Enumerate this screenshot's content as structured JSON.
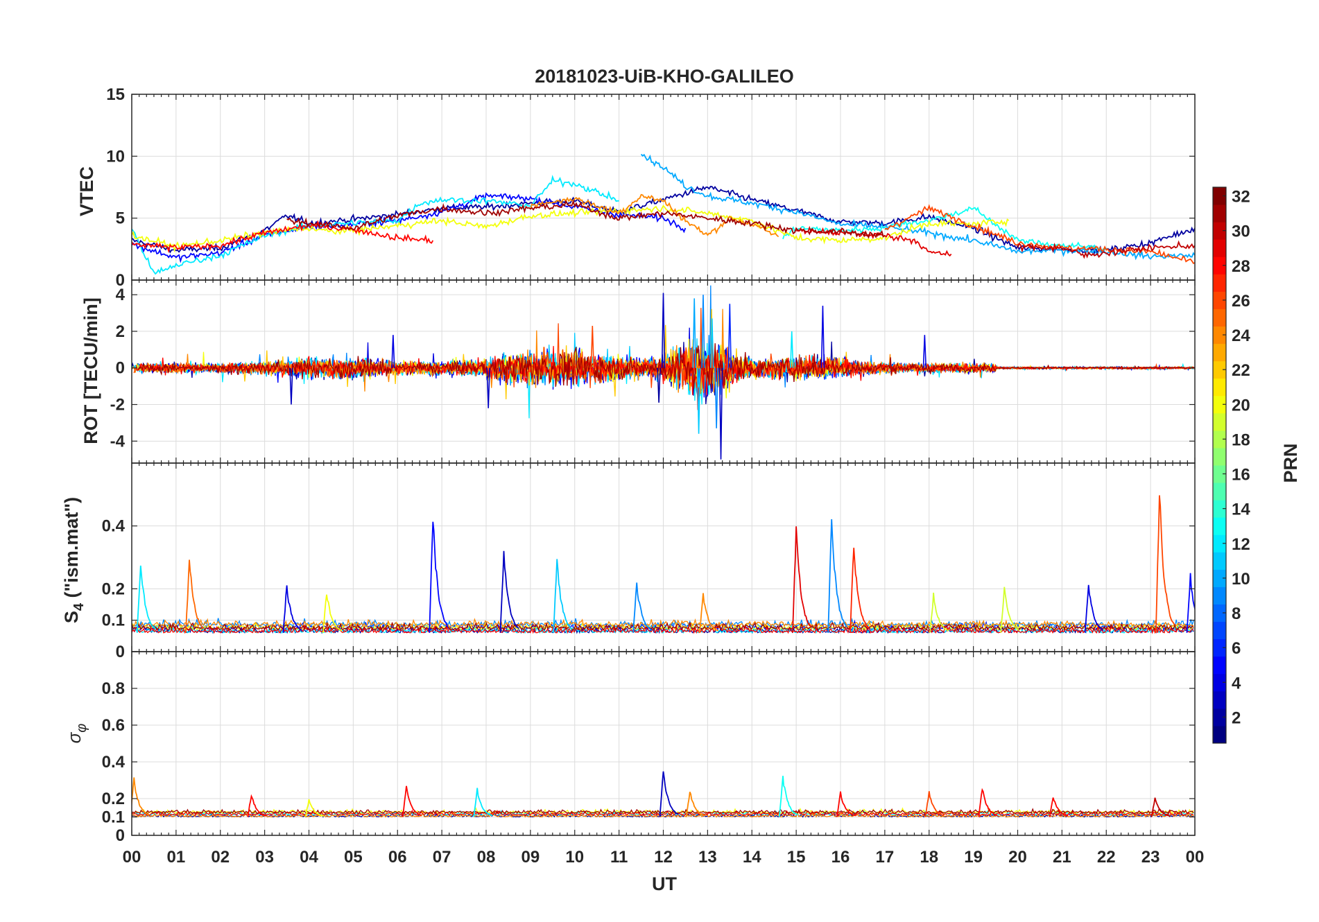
{
  "chart_data": {
    "type": "line",
    "title": "20181023-UiB-KHO-GALILEO",
    "xlabel": "UT",
    "x_ticks": [
      "00",
      "01",
      "02",
      "03",
      "04",
      "05",
      "06",
      "07",
      "08",
      "09",
      "10",
      "11",
      "12",
      "13",
      "14",
      "15",
      "16",
      "17",
      "18",
      "19",
      "20",
      "21",
      "22",
      "23",
      "00"
    ],
    "xlim": [
      0,
      24
    ],
    "colormap": "jet",
    "colorbar": {
      "label": "PRN",
      "range": [
        1,
        32
      ],
      "ticks": [
        "2",
        "4",
        "6",
        "8",
        "10",
        "12",
        "14",
        "16",
        "18",
        "20",
        "22",
        "24",
        "26",
        "28",
        "30",
        "32"
      ]
    },
    "panels": [
      {
        "id": "vtec",
        "ylabel": "VTEC",
        "ylim": [
          0,
          15
        ],
        "yticks": [
          "0",
          "5",
          "10",
          "15"
        ],
        "series": [
          {
            "prn": 2,
            "points": [
              [
                0,
                3.2
              ],
              [
                1,
                2.4
              ],
              [
                2,
                2.6
              ],
              [
                3,
                4.0
              ],
              [
                3.5,
                5.2
              ],
              [
                4,
                4.6
              ],
              [
                5,
                4.9
              ],
              [
                6,
                5.3
              ],
              [
                7,
                5.8
              ],
              [
                8,
                5.9
              ],
              [
                9,
                6.2
              ],
              [
                10,
                6.4
              ],
              [
                11,
                5.5
              ],
              [
                12,
                6.5
              ],
              [
                13,
                7.5
              ],
              [
                14,
                6.5
              ],
              [
                15,
                5.6
              ],
              [
                16,
                4.7
              ],
              [
                17,
                4.6
              ],
              [
                18,
                5.1
              ],
              [
                19,
                4.2
              ],
              [
                20,
                2.6
              ],
              [
                21,
                2.5
              ],
              [
                22,
                2.4
              ],
              [
                23,
                3.0
              ],
              [
                24,
                4.2
              ]
            ]
          },
          {
            "prn": 5,
            "points": [
              [
                0,
                2.9
              ],
              [
                1,
                1.8
              ],
              [
                2,
                2.2
              ],
              [
                3,
                3.6
              ],
              [
                4,
                4.3
              ],
              [
                5,
                4.5
              ],
              [
                6,
                4.8
              ],
              [
                7,
                5.5
              ],
              [
                8,
                6.8
              ],
              [
                9,
                6.6
              ],
              [
                10,
                5.9
              ],
              [
                11,
                5.3
              ],
              [
                12,
                5.0
              ],
              [
                12.5,
                4.2
              ]
            ]
          },
          {
            "prn": 10,
            "points": [
              [
                11.5,
                10.2
              ],
              [
                12,
                9.1
              ],
              [
                12.5,
                7.6
              ],
              [
                13,
                6.8
              ],
              [
                14,
                6.2
              ],
              [
                15,
                5.5
              ],
              [
                16,
                4.5
              ],
              [
                17,
                4.3
              ],
              [
                18,
                3.8
              ],
              [
                19,
                3.2
              ],
              [
                20,
                2.3
              ],
              [
                21,
                2.4
              ],
              [
                22,
                2.3
              ],
              [
                23,
                1.9
              ],
              [
                24,
                2.0
              ]
            ]
          },
          {
            "prn": 12,
            "points": [
              [
                0,
                4.2
              ],
              [
                0.5,
                0.5
              ],
              [
                1,
                1.2
              ],
              [
                2,
                2.0
              ],
              [
                3,
                3.6
              ],
              [
                4,
                4.4
              ],
              [
                5,
                4.6
              ],
              [
                6,
                4.8
              ],
              [
                6.5,
                6.2
              ],
              [
                7,
                6.5
              ],
              [
                8,
                6.4
              ],
              [
                9,
                6.0
              ],
              [
                9.5,
                8.0
              ],
              [
                10,
                7.8
              ],
              [
                11,
                6.4
              ]
            ]
          },
          {
            "prn": 13,
            "points": [
              [
                14.7,
                3.4
              ],
              [
                15,
                4.2
              ],
              [
                16,
                4.0
              ],
              [
                17,
                4.2
              ],
              [
                17.5,
                4.6
              ],
              [
                18,
                4.8
              ],
              [
                19,
                5.8
              ],
              [
                20,
                3.2
              ],
              [
                21,
                2.8
              ],
              [
                22,
                2.6
              ]
            ]
          },
          {
            "prn": 20,
            "points": [
              [
                0,
                3.6
              ],
              [
                1,
                2.7
              ],
              [
                2,
                3.2
              ],
              [
                3,
                3.8
              ],
              [
                4,
                4.2
              ],
              [
                4.5,
                3.9
              ],
              [
                5,
                4.0
              ],
              [
                6,
                4.4
              ],
              [
                7,
                4.8
              ],
              [
                8,
                4.3
              ],
              [
                9,
                5.2
              ],
              [
                10,
                5.4
              ],
              [
                11,
                5.6
              ],
              [
                12,
                5.8
              ],
              [
                13,
                5.4
              ],
              [
                14,
                4.8
              ],
              [
                15,
                3.4
              ],
              [
                16,
                3.2
              ],
              [
                17,
                3.4
              ],
              [
                18,
                4.6
              ],
              [
                19,
                4.5
              ],
              [
                19.8,
                4.8
              ]
            ]
          },
          {
            "prn": 24,
            "points": [
              [
                9,
                6.0
              ],
              [
                10,
                6.6
              ],
              [
                11,
                5.4
              ],
              [
                11.5,
                6.8
              ],
              [
                12,
                6.4
              ],
              [
                12.5,
                4.8
              ],
              [
                13,
                3.6
              ],
              [
                13.5,
                5.0
              ],
              [
                14,
                4.5
              ],
              [
                14.6,
                3.5
              ]
            ]
          },
          {
            "prn": 26,
            "points": [
              [
                17,
                4.1
              ],
              [
                18,
                5.8
              ],
              [
                19,
                4.4
              ],
              [
                20,
                3.0
              ],
              [
                21,
                2.6
              ],
              [
                22,
                2.5
              ],
              [
                23,
                2.3
              ],
              [
                24,
                1.4
              ]
            ]
          },
          {
            "prn": 28,
            "points": [
              [
                0,
                2.9
              ],
              [
                1,
                2.6
              ],
              [
                2,
                2.8
              ],
              [
                3,
                3.8
              ],
              [
                4,
                4.4
              ],
              [
                5,
                4.1
              ],
              [
                6,
                3.4
              ],
              [
                6.8,
                3.2
              ]
            ]
          },
          {
            "prn": 29,
            "points": [
              [
                15,
                4.0
              ],
              [
                16,
                3.8
              ],
              [
                17,
                3.6
              ],
              [
                17.7,
                3.2
              ],
              [
                18,
                2.2
              ],
              [
                18.5,
                2.1
              ]
            ]
          },
          {
            "prn": 31,
            "points": [
              [
                3.5,
                4.8
              ],
              [
                4,
                4.6
              ],
              [
                5,
                4.2
              ],
              [
                6,
                5.2
              ],
              [
                7,
                5.8
              ],
              [
                8,
                5.4
              ],
              [
                9,
                5.8
              ],
              [
                10,
                6.1
              ],
              [
                11,
                5.0
              ],
              [
                12,
                5.4
              ],
              [
                13,
                5.0
              ],
              [
                14,
                4.6
              ],
              [
                15,
                4.0
              ],
              [
                16,
                3.9
              ],
              [
                17,
                3.6
              ]
            ]
          },
          {
            "prn": 30,
            "points": [
              [
                20,
                2.7
              ],
              [
                21,
                2.6
              ],
              [
                21.5,
                2.0
              ],
              [
                22,
                2.2
              ],
              [
                23,
                2.6
              ],
              [
                24,
                2.8
              ]
            ]
          }
        ]
      },
      {
        "id": "rot",
        "ylabel": "ROT [TECU/min]",
        "ylim": [
          -5.2,
          4.8
        ],
        "yticks": [
          "-4",
          "-2",
          "0",
          "2",
          "4"
        ]
      },
      {
        "id": "s4",
        "ylabel": "S4 (\"ism.mat\")",
        "ylim": [
          0,
          0.6
        ],
        "yticks": [
          "0",
          "0.1",
          "0.2",
          "0.4"
        ],
        "peaks": [
          {
            "prn": 12,
            "x": 0.2,
            "y": 0.3
          },
          {
            "prn": 25,
            "x": 1.3,
            "y": 0.31
          },
          {
            "prn": 4,
            "x": 3.5,
            "y": 0.22
          },
          {
            "prn": 20,
            "x": 4.4,
            "y": 0.2
          },
          {
            "prn": 5,
            "x": 6.8,
            "y": 0.45
          },
          {
            "prn": 3,
            "x": 8.4,
            "y": 0.33
          },
          {
            "prn": 11,
            "x": 9.6,
            "y": 0.31
          },
          {
            "prn": 9,
            "x": 11.4,
            "y": 0.23
          },
          {
            "prn": 24,
            "x": 12.9,
            "y": 0.19
          },
          {
            "prn": 29,
            "x": 15.0,
            "y": 0.41
          },
          {
            "prn": 9,
            "x": 15.8,
            "y": 0.44
          },
          {
            "prn": 27,
            "x": 16.3,
            "y": 0.36
          },
          {
            "prn": 19,
            "x": 18.1,
            "y": 0.19
          },
          {
            "prn": 19,
            "x": 19.7,
            "y": 0.22
          },
          {
            "prn": 4,
            "x": 21.6,
            "y": 0.22
          },
          {
            "prn": 26,
            "x": 23.2,
            "y": 0.54
          },
          {
            "prn": 5,
            "x": 23.9,
            "y": 0.25
          }
        ]
      },
      {
        "id": "sigma_phi",
        "ylabel": "σφ",
        "ylim": [
          0,
          1
        ],
        "yticks": [
          "0",
          "0.1",
          "0.2",
          "0.4",
          "0.6",
          "0.8"
        ],
        "peaks": [
          {
            "prn": 24,
            "x": 0.05,
            "y": 0.32
          },
          {
            "prn": 28,
            "x": 2.7,
            "y": 0.23
          },
          {
            "prn": 20,
            "x": 4.0,
            "y": 0.2
          },
          {
            "prn": 28,
            "x": 6.2,
            "y": 0.28
          },
          {
            "prn": 12,
            "x": 7.8,
            "y": 0.26
          },
          {
            "prn": 3,
            "x": 12.0,
            "y": 0.37
          },
          {
            "prn": 24,
            "x": 12.6,
            "y": 0.25
          },
          {
            "prn": 13,
            "x": 14.7,
            "y": 0.33
          },
          {
            "prn": 28,
            "x": 16.0,
            "y": 0.24
          },
          {
            "prn": 26,
            "x": 18.0,
            "y": 0.25
          },
          {
            "prn": 28,
            "x": 19.2,
            "y": 0.27
          },
          {
            "prn": 28,
            "x": 20.8,
            "y": 0.22
          },
          {
            "prn": 30,
            "x": 23.1,
            "y": 0.21
          }
        ]
      }
    ]
  }
}
